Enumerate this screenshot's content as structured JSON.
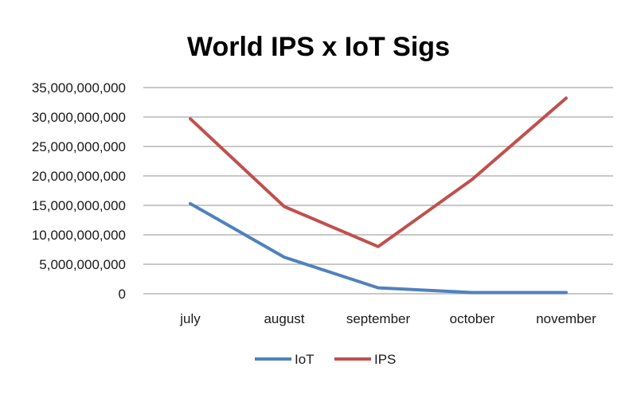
{
  "chart_data": {
    "type": "line",
    "title": "World IPS x IoT Sigs",
    "xlabel": "",
    "ylabel": "",
    "categories": [
      "july",
      "august",
      "september",
      "october",
      "november"
    ],
    "series": [
      {
        "name": "IoT",
        "color": "#4f81bd",
        "values": [
          15300000000,
          6200000000,
          1000000000,
          200000000,
          200000000
        ]
      },
      {
        "name": "IPS",
        "color": "#c0504d",
        "values": [
          29700000000,
          14800000000,
          8000000000,
          19400000000,
          33200000000
        ]
      }
    ],
    "ylim": [
      0,
      35000000000
    ],
    "yticks": [
      {
        "value": 0,
        "label": "0"
      },
      {
        "value": 5000000000,
        "label": "5,000,000,000"
      },
      {
        "value": 10000000000,
        "label": "10,000,000,000"
      },
      {
        "value": 15000000000,
        "label": "15,000,000,000"
      },
      {
        "value": 20000000000,
        "label": "20,000,000,000"
      },
      {
        "value": 25000000000,
        "label": "25,000,000,000"
      },
      {
        "value": 30000000000,
        "label": "30,000,000,000"
      },
      {
        "value": 35000000000,
        "label": "35,000,000,000"
      }
    ],
    "grid": true,
    "legend": "bottom"
  }
}
